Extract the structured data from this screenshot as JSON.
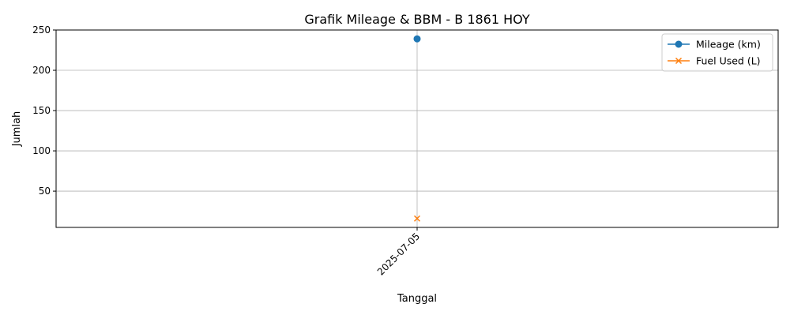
{
  "chart_data": {
    "type": "line",
    "title": "Grafik Mileage & BBM - B 1861 HOY",
    "xlabel": "Tanggal",
    "ylabel": "Jumlah",
    "categories": [
      "2025-07-05"
    ],
    "ylim": [
      5,
      250
    ],
    "yticks": [
      50,
      100,
      150,
      200,
      250
    ],
    "grid": true,
    "legend_position": "top-right",
    "series": [
      {
        "name": "Mileage (km)",
        "values": [
          239
        ],
        "color": "#1f77b4",
        "marker": "circle"
      },
      {
        "name": "Fuel Used (L)",
        "values": [
          16
        ],
        "color": "#ff7f0e",
        "marker": "x"
      }
    ]
  }
}
